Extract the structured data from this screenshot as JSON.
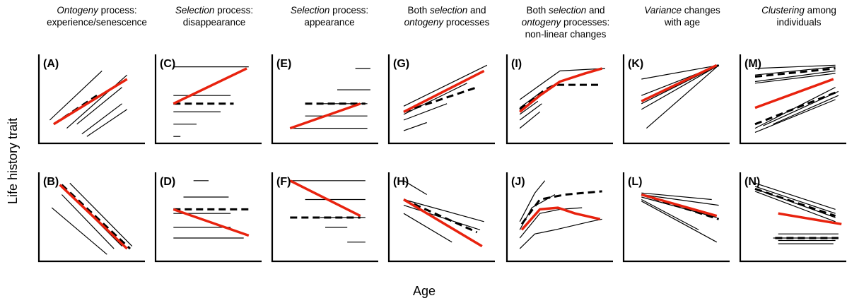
{
  "axes": {
    "y_label": "Life history trait",
    "x_label": "Age"
  },
  "columns": [
    {
      "parts": [
        {
          "t": "Ontogeny",
          "i": true
        },
        {
          "t": " process:",
          "i": false
        },
        {
          "br": true
        },
        {
          "t": "experience/senescence",
          "i": false
        }
      ]
    },
    {
      "parts": [
        {
          "t": "Selection",
          "i": true
        },
        {
          "t": " process:",
          "i": false
        },
        {
          "br": true
        },
        {
          "t": "disappearance",
          "i": false
        }
      ]
    },
    {
      "parts": [
        {
          "t": "Selection",
          "i": true
        },
        {
          "t": " process:",
          "i": false
        },
        {
          "br": true
        },
        {
          "t": "appearance",
          "i": false
        }
      ]
    },
    {
      "parts": [
        {
          "t": "Both ",
          "i": false
        },
        {
          "t": "selection",
          "i": true
        },
        {
          "t": " and",
          "i": false
        },
        {
          "br": true
        },
        {
          "t": "ontogeny",
          "i": true
        },
        {
          "t": " processes",
          "i": false
        }
      ]
    },
    {
      "parts": [
        {
          "t": "Both ",
          "i": false
        },
        {
          "t": "selection",
          "i": true
        },
        {
          "t": " and",
          "i": false
        },
        {
          "br": true
        },
        {
          "t": "ontogeny",
          "i": true
        },
        {
          "t": " processes:",
          "i": false
        },
        {
          "br": true
        },
        {
          "t": "non-linear changes",
          "i": false
        }
      ]
    },
    {
      "parts": [
        {
          "t": "Variance",
          "i": true
        },
        {
          "t": " changes",
          "i": false
        },
        {
          "br": true
        },
        {
          "t": "with age",
          "i": false
        }
      ]
    },
    {
      "parts": [
        {
          "t": "Clustering",
          "i": true
        },
        {
          "t": " among",
          "i": false
        },
        {
          "br": true
        },
        {
          "t": "individuals",
          "i": false
        }
      ]
    }
  ],
  "panels": [
    {
      "label": "(A)",
      "thin": [
        [
          [
            0.08,
            0.25
          ],
          [
            0.6,
            0.85
          ]
        ],
        [
          [
            0.25,
            0.15
          ],
          [
            0.85,
            0.8
          ]
        ],
        [
          [
            0.35,
            0.2
          ],
          [
            0.8,
            0.65
          ]
        ],
        [
          [
            0.4,
            0.08
          ],
          [
            0.8,
            0.45
          ]
        ],
        [
          [
            0.45,
            0.05
          ],
          [
            0.85,
            0.38
          ]
        ]
      ],
      "dashed": [
        [
          [
            0.12,
            0.2
          ],
          [
            0.55,
            0.55
          ]
        ]
      ],
      "red": [
        [
          [
            0.12,
            0.2
          ],
          [
            0.85,
            0.75
          ]
        ]
      ]
    },
    {
      "label": "(B)",
      "thin": [
        [
          [
            0.28,
            0.92
          ],
          [
            0.9,
            0.15
          ]
        ],
        [
          [
            0.2,
            0.78
          ],
          [
            0.72,
            0.12
          ]
        ],
        [
          [
            0.35,
            0.7
          ],
          [
            0.8,
            0.15
          ]
        ],
        [
          [
            0.1,
            0.62
          ],
          [
            0.65,
            0.05
          ]
        ]
      ],
      "dashed": [
        [
          [
            0.2,
            0.9
          ],
          [
            0.88,
            0.12
          ]
        ]
      ],
      "red": [
        [
          [
            0.18,
            0.9
          ],
          [
            0.85,
            0.12
          ]
        ]
      ]
    },
    {
      "label": "(C)",
      "thin": [
        [
          [
            0.15,
            0.9
          ],
          [
            0.9,
            0.9
          ]
        ],
        [
          [
            0.15,
            0.55
          ],
          [
            0.72,
            0.55
          ]
        ],
        [
          [
            0.15,
            0.35
          ],
          [
            0.62,
            0.35
          ]
        ],
        [
          [
            0.15,
            0.2
          ],
          [
            0.38,
            0.2
          ]
        ],
        [
          [
            0.15,
            0.05
          ],
          [
            0.22,
            0.05
          ]
        ]
      ],
      "dashed": [
        [
          [
            0.15,
            0.45
          ],
          [
            0.75,
            0.45
          ]
        ]
      ],
      "red": [
        [
          [
            0.15,
            0.45
          ],
          [
            0.88,
            0.88
          ]
        ]
      ]
    },
    {
      "label": "(D)",
      "thin": [
        [
          [
            0.35,
            0.95
          ],
          [
            0.5,
            0.95
          ]
        ],
        [
          [
            0.25,
            0.75
          ],
          [
            0.7,
            0.75
          ]
        ],
        [
          [
            0.15,
            0.55
          ],
          [
            0.72,
            0.55
          ]
        ],
        [
          [
            0.15,
            0.38
          ],
          [
            0.72,
            0.38
          ]
        ],
        [
          [
            0.15,
            0.25
          ],
          [
            0.85,
            0.25
          ]
        ]
      ],
      "dashed": [
        [
          [
            0.15,
            0.6
          ],
          [
            0.9,
            0.6
          ]
        ]
      ],
      "red": [
        [
          [
            0.15,
            0.6
          ],
          [
            0.9,
            0.28
          ]
        ]
      ]
    },
    {
      "label": "(E)",
      "thin": [
        [
          [
            0.8,
            0.88
          ],
          [
            0.95,
            0.88
          ]
        ],
        [
          [
            0.62,
            0.62
          ],
          [
            0.95,
            0.62
          ]
        ],
        [
          [
            0.45,
            0.45
          ],
          [
            0.92,
            0.45
          ]
        ],
        [
          [
            0.3,
            0.3
          ],
          [
            0.92,
            0.3
          ]
        ],
        [
          [
            0.15,
            0.15
          ],
          [
            0.92,
            0.15
          ]
        ]
      ],
      "dashed": [
        [
          [
            0.3,
            0.45
          ],
          [
            0.9,
            0.45
          ]
        ]
      ],
      "red": [
        [
          [
            0.15,
            0.15
          ],
          [
            0.85,
            0.45
          ]
        ]
      ]
    },
    {
      "label": "(F)",
      "thin": [
        [
          [
            0.15,
            0.95
          ],
          [
            0.9,
            0.95
          ]
        ],
        [
          [
            0.3,
            0.72
          ],
          [
            0.9,
            0.72
          ]
        ],
        [
          [
            0.45,
            0.5
          ],
          [
            0.9,
            0.5
          ]
        ],
        [
          [
            0.5,
            0.38
          ],
          [
            0.72,
            0.38
          ]
        ],
        [
          [
            0.72,
            0.2
          ],
          [
            0.9,
            0.2
          ]
        ]
      ],
      "dashed": [
        [
          [
            0.15,
            0.5
          ],
          [
            0.85,
            0.5
          ]
        ]
      ],
      "red": [
        [
          [
            0.15,
            0.95
          ],
          [
            0.85,
            0.52
          ]
        ]
      ]
    },
    {
      "label": "(G)",
      "thin": [
        [
          [
            0.12,
            0.42
          ],
          [
            0.95,
            0.92
          ]
        ],
        [
          [
            0.12,
            0.32
          ],
          [
            0.75,
            0.7
          ]
        ],
        [
          [
            0.12,
            0.25
          ],
          [
            0.55,
            0.45
          ]
        ],
        [
          [
            0.12,
            0.12
          ],
          [
            0.35,
            0.22
          ]
        ]
      ],
      "dashed": [
        [
          [
            0.12,
            0.35
          ],
          [
            0.85,
            0.65
          ]
        ]
      ],
      "red": [
        [
          [
            0.12,
            0.35
          ],
          [
            0.92,
            0.85
          ]
        ]
      ]
    },
    {
      "label": "(H)",
      "thin": [
        [
          [
            0.12,
            0.95
          ],
          [
            0.35,
            0.78
          ]
        ],
        [
          [
            0.12,
            0.72
          ],
          [
            0.92,
            0.45
          ]
        ],
        [
          [
            0.12,
            0.65
          ],
          [
            0.88,
            0.35
          ]
        ],
        [
          [
            0.12,
            0.55
          ],
          [
            0.6,
            0.2
          ]
        ]
      ],
      "dashed": [
        [
          [
            0.12,
            0.72
          ],
          [
            0.85,
            0.32
          ]
        ]
      ],
      "red": [
        [
          [
            0.12,
            0.72
          ],
          [
            0.9,
            0.15
          ]
        ]
      ]
    },
    {
      "label": "(I)",
      "thin": [
        [
          [
            0.1,
            0.5
          ],
          [
            0.35,
            0.72
          ],
          [
            0.5,
            0.85
          ],
          [
            0.95,
            0.88
          ]
        ],
        [
          [
            0.1,
            0.4
          ],
          [
            0.3,
            0.58
          ]
        ],
        [
          [
            0.1,
            0.32
          ],
          [
            0.28,
            0.48
          ]
        ],
        [
          [
            0.1,
            0.25
          ],
          [
            0.32,
            0.45
          ]
        ],
        [
          [
            0.1,
            0.15
          ],
          [
            0.3,
            0.35
          ]
        ]
      ],
      "dashed": [
        [
          [
            0.1,
            0.38
          ],
          [
            0.35,
            0.62
          ],
          [
            0.45,
            0.68
          ],
          [
            0.9,
            0.68
          ]
        ]
      ],
      "red": [
        [
          [
            0.1,
            0.35
          ],
          [
            0.3,
            0.55
          ],
          [
            0.5,
            0.72
          ],
          [
            0.75,
            0.82
          ],
          [
            0.92,
            0.88
          ]
        ]
      ]
    },
    {
      "label": "(J)",
      "thin": [
        [
          [
            0.1,
            0.45
          ],
          [
            0.25,
            0.8
          ],
          [
            0.35,
            0.95
          ]
        ],
        [
          [
            0.1,
            0.35
          ],
          [
            0.22,
            0.62
          ],
          [
            0.45,
            0.78
          ]
        ],
        [
          [
            0.1,
            0.25
          ],
          [
            0.3,
            0.55
          ],
          [
            0.5,
            0.6
          ],
          [
            0.72,
            0.62
          ]
        ],
        [
          [
            0.1,
            0.12
          ],
          [
            0.25,
            0.3
          ],
          [
            0.45,
            0.35
          ],
          [
            0.8,
            0.45
          ],
          [
            0.92,
            0.48
          ]
        ]
      ],
      "dashed": [
        [
          [
            0.12,
            0.42
          ],
          [
            0.3,
            0.72
          ],
          [
            0.55,
            0.78
          ],
          [
            0.92,
            0.82
          ]
        ]
      ],
      "red": [
        [
          [
            0.12,
            0.35
          ],
          [
            0.3,
            0.6
          ],
          [
            0.48,
            0.62
          ],
          [
            0.65,
            0.55
          ],
          [
            0.9,
            0.48
          ]
        ]
      ]
    },
    {
      "label": "(K)",
      "thin": [
        [
          [
            0.15,
            0.75
          ],
          [
            0.92,
            0.92
          ]
        ],
        [
          [
            0.15,
            0.55
          ],
          [
            0.92,
            0.92
          ]
        ],
        [
          [
            0.15,
            0.45
          ],
          [
            0.92,
            0.92
          ]
        ],
        [
          [
            0.15,
            0.38
          ],
          [
            0.92,
            0.92
          ]
        ],
        [
          [
            0.2,
            0.15
          ],
          [
            0.92,
            0.92
          ]
        ]
      ],
      "dashed": [
        [
          [
            0.15,
            0.48
          ],
          [
            0.92,
            0.92
          ]
        ]
      ],
      "red": [
        [
          [
            0.15,
            0.48
          ],
          [
            0.9,
            0.92
          ]
        ]
      ]
    },
    {
      "label": "(L)",
      "thin": [
        [
          [
            0.15,
            0.8
          ],
          [
            0.85,
            0.72
          ]
        ],
        [
          [
            0.15,
            0.78
          ],
          [
            0.92,
            0.65
          ]
        ],
        [
          [
            0.15,
            0.75
          ],
          [
            0.9,
            0.5
          ]
        ],
        [
          [
            0.15,
            0.72
          ],
          [
            0.72,
            0.35
          ]
        ],
        [
          [
            0.15,
            0.7
          ],
          [
            0.9,
            0.2
          ]
        ]
      ],
      "dashed": [
        [
          [
            0.15,
            0.78
          ],
          [
            0.92,
            0.48
          ]
        ]
      ],
      "red": [
        [
          [
            0.15,
            0.78
          ],
          [
            0.9,
            0.52
          ]
        ]
      ]
    },
    {
      "label": "(M)",
      "thin": [
        [
          [
            0.12,
            0.88
          ],
          [
            0.92,
            0.92
          ]
        ],
        [
          [
            0.12,
            0.8
          ],
          [
            0.92,
            0.9
          ]
        ],
        [
          [
            0.12,
            0.72
          ],
          [
            0.92,
            0.85
          ]
        ],
        [
          [
            0.12,
            0.7
          ],
          [
            0.92,
            0.82
          ]
        ],
        [
          [
            0.12,
            0.15
          ],
          [
            0.92,
            0.65
          ]
        ],
        [
          [
            0.2,
            0.18
          ],
          [
            0.95,
            0.6
          ]
        ],
        [
          [
            0.3,
            0.2
          ],
          [
            0.95,
            0.55
          ]
        ],
        [
          [
            0.12,
            0.1
          ],
          [
            0.92,
            0.5
          ]
        ]
      ],
      "dashed": [
        [
          [
            0.12,
            0.78
          ],
          [
            0.92,
            0.88
          ]
        ],
        [
          [
            0.12,
            0.2
          ],
          [
            0.95,
            0.6
          ]
        ]
      ],
      "red": [
        [
          [
            0.12,
            0.4
          ],
          [
            0.9,
            0.75
          ]
        ]
      ]
    },
    {
      "label": "(N)",
      "thin": [
        [
          [
            0.12,
            0.92
          ],
          [
            0.92,
            0.6
          ]
        ],
        [
          [
            0.12,
            0.88
          ],
          [
            0.92,
            0.55
          ]
        ],
        [
          [
            0.12,
            0.85
          ],
          [
            0.92,
            0.5
          ]
        ],
        [
          [
            0.12,
            0.82
          ],
          [
            0.92,
            0.45
          ]
        ],
        [
          [
            0.35,
            0.3
          ],
          [
            0.95,
            0.3
          ]
        ],
        [
          [
            0.3,
            0.25
          ],
          [
            0.95,
            0.25
          ]
        ],
        [
          [
            0.35,
            0.22
          ],
          [
            0.92,
            0.22
          ]
        ],
        [
          [
            0.35,
            0.18
          ],
          [
            0.9,
            0.18
          ]
        ]
      ],
      "dashed": [
        [
          [
            0.12,
            0.85
          ],
          [
            0.92,
            0.52
          ]
        ],
        [
          [
            0.32,
            0.25
          ],
          [
            0.95,
            0.25
          ]
        ]
      ],
      "red": [
        [
          [
            0.35,
            0.55
          ],
          [
            0.98,
            0.42
          ]
        ]
      ]
    }
  ],
  "colors": {
    "axis": "#000000",
    "thin": "#000000",
    "dashed": "#000000",
    "red": "#e8220e"
  }
}
